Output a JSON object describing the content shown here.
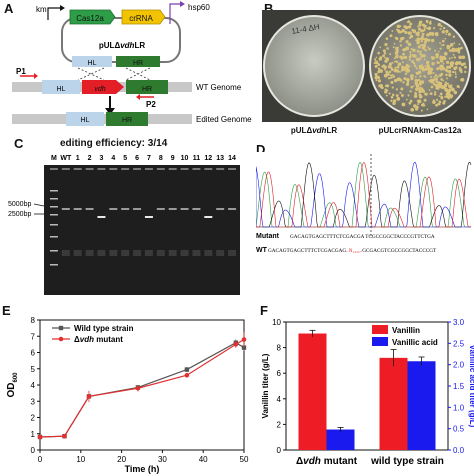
{
  "panels": {
    "a": "A",
    "b": "B",
    "c": "C",
    "d": "D",
    "e": "E",
    "f": "F"
  },
  "panel_a": {
    "km": "km",
    "cas12a": "Cas12a",
    "crrna": "crRNA",
    "hsp60": "hsp60",
    "plasmid": "pULΔvdhLR",
    "hl": "HL",
    "hr": "HR",
    "vdh": "vdh",
    "p1": "P1",
    "p2": "P2",
    "wt_genome": "WT Genome",
    "edited_genome": "Edited Genome"
  },
  "panel_b": {
    "plate1_label": "pULΔvdhLR",
    "plate2_label": "pULcrRNAkm-Cas12a",
    "plate1_mark": "11-4 ΔH",
    "colors": {
      "plate_bg1": "#b9bdb3",
      "plate_bg2": "#9a9a8c",
      "colony": "#d9c27a"
    }
  },
  "panel_c": {
    "title": "editing efficiency: 3/14",
    "lanes": [
      "M",
      "WT",
      "1",
      "2",
      "3",
      "4",
      "5",
      "6",
      "7",
      "8",
      "9",
      "10",
      "11",
      "12",
      "13",
      "14"
    ],
    "marker_5000": "5000bp",
    "marker_2500": "2500bp"
  },
  "panel_d": {
    "mutant_label": "Mutant",
    "mutant_seq_left": "GACAGTGAGCTTTCTCGACGA",
    "mutant_seq_right": "TCGCCGGCTACCCGTTCTGA",
    "wt_label": "WT",
    "wt_seq_left": "GACAGTGAGCTTTCTCGACGAG",
    "wt_insert": "..N₁₄₃₂..",
    "wt_seq_right": "GCGACGTCGCCGGCTACCCGT"
  },
  "chart_data": [
    {
      "type": "line",
      "panel": "E",
      "xlabel": "Time (h)",
      "ylabel": "OD600",
      "ylabel_main": "OD",
      "ylabel_sub": "600",
      "xlim": [
        0,
        50
      ],
      "ylim": [
        0,
        8
      ],
      "xticks": [
        "0",
        "10",
        "20",
        "30",
        "40",
        "50"
      ],
      "yticks": [
        "0",
        "1",
        "2",
        "3",
        "4",
        "5",
        "6",
        "7",
        "8"
      ],
      "series": [
        {
          "name": "Wild type strain",
          "color": "#555555",
          "x": [
            0,
            6,
            12,
            24,
            36,
            48,
            50
          ],
          "y": [
            0.8,
            0.85,
            3.3,
            3.85,
            4.95,
            6.6,
            6.3
          ],
          "err": [
            0.05,
            0.05,
            0.1,
            0.15,
            0.15,
            0.2,
            0.2
          ]
        },
        {
          "name": "Δvdh mutant",
          "name_prefix": "Δ",
          "name_italic": "vdh",
          "name_suffix": " mutant",
          "color": "#e03030",
          "x": [
            0,
            6,
            12,
            24,
            36,
            48,
            50
          ],
          "y": [
            0.8,
            0.85,
            3.3,
            3.8,
            4.6,
            6.5,
            6.8
          ],
          "err": [
            0.05,
            0.05,
            0.35,
            0.2,
            0.15,
            0.2,
            0.45
          ]
        }
      ]
    },
    {
      "type": "bar",
      "panel": "F",
      "categories": [
        "Δvdh mutant",
        "wild type strain"
      ],
      "category_parts": [
        {
          "prefix": "Δ",
          "italic": "vdh",
          "suffix": " mutant"
        },
        {
          "prefix": "wild type strain",
          "italic": "",
          "suffix": ""
        }
      ],
      "ylabel": "Vanillin titer (g/L)",
      "y2label": "Vanillic acid titer (g/L)",
      "ylim": [
        0,
        10
      ],
      "y2lim": [
        0,
        3.0
      ],
      "yticks": [
        "0",
        "2",
        "4",
        "6",
        "8",
        "10"
      ],
      "y2ticks": [
        "0.0",
        "0.5",
        "1.0",
        "1.5",
        "2.0",
        "2.5",
        "3.0"
      ],
      "series": [
        {
          "name": "Vanillin",
          "axis": "left",
          "color": "#ee1c24",
          "values": [
            9.1,
            7.2
          ],
          "err": [
            0.25,
            0.65
          ]
        },
        {
          "name": "Vanillic acid",
          "axis": "right",
          "color": "#1a1aee",
          "values": [
            0.48,
            2.08
          ],
          "err": [
            0.05,
            0.1
          ]
        }
      ]
    }
  ]
}
